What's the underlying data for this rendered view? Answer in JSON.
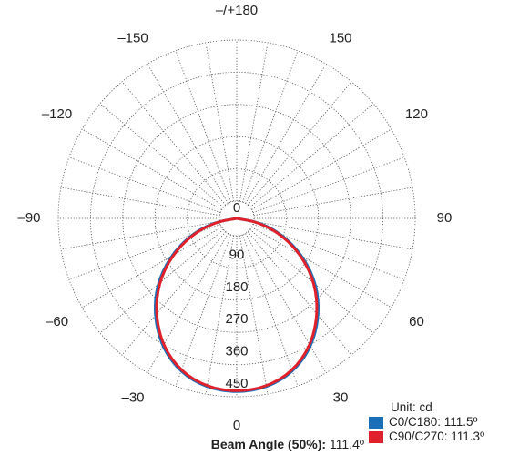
{
  "chart_data": {
    "type": "polar",
    "unit_label": "Unit: cd",
    "angle_labels": [
      {
        "text": "0",
        "angle": 0
      },
      {
        "text": "30",
        "angle": 30
      },
      {
        "text": "60",
        "angle": 60
      },
      {
        "text": "90",
        "angle": 90
      },
      {
        "text": "120",
        "angle": 120
      },
      {
        "text": "150",
        "angle": 150
      },
      {
        "text": "–/+180",
        "angle": 180
      },
      {
        "text": "–150",
        "angle": -150
      },
      {
        "text": "–120",
        "angle": -120
      },
      {
        "text": "–90",
        "angle": -90
      },
      {
        "text": "–60",
        "angle": -60
      },
      {
        "text": "–30",
        "angle": -30
      }
    ],
    "radial_ticks": [
      90,
      180,
      270,
      360,
      450
    ],
    "radial_zero_label": "0",
    "radial_max": 450,
    "grid": true,
    "legend_position": "bottom-right",
    "series": [
      {
        "name": "C0/C180",
        "beam_label": "C0/C180: 111.5º",
        "color": "#1a6fb8",
        "angles": [
          -90,
          -80,
          -70,
          -60,
          -50,
          -40,
          -30,
          -20,
          -10,
          0,
          10,
          20,
          30,
          40,
          50,
          60,
          70,
          80,
          90
        ],
        "values": [
          0,
          60,
          125,
          195,
          264,
          323,
          376,
          414,
          434,
          440,
          434,
          414,
          376,
          323,
          264,
          195,
          125,
          60,
          0
        ]
      },
      {
        "name": "C90/C270",
        "beam_label": "C90/C270: 111.3º",
        "color": "#e0202a",
        "angles": [
          -90,
          -80,
          -70,
          -60,
          -50,
          -40,
          -30,
          -20,
          -10,
          0,
          10,
          20,
          30,
          40,
          50,
          60,
          70,
          80,
          90
        ],
        "values": [
          0,
          55,
          120,
          190,
          258,
          318,
          372,
          411,
          432,
          438,
          432,
          411,
          372,
          318,
          258,
          190,
          120,
          55,
          0
        ]
      }
    ]
  },
  "footer": {
    "beam_angle_label": "Beam Angle (50%):",
    "beam_angle_value": " 111.4º"
  }
}
